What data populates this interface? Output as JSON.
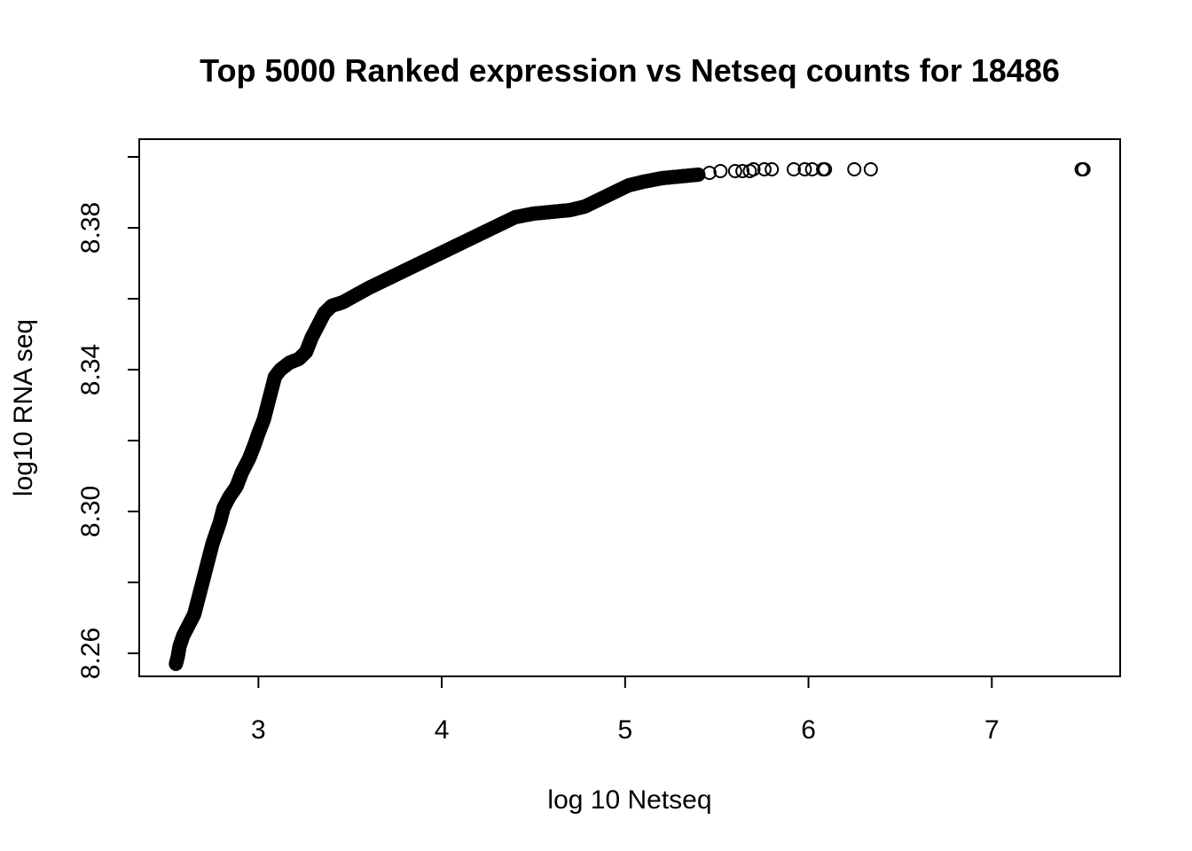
{
  "chart_data": {
    "type": "scatter",
    "title": "Top 5000 Ranked expression vs Netseq counts for 18486",
    "xlabel": "log 10 Netseq",
    "ylabel": "log10 RNA seq",
    "xlim": [
      2.35,
      7.7
    ],
    "ylim": [
      8.2535,
      8.405
    ],
    "xticks": [
      3,
      4,
      5,
      6,
      7
    ],
    "xtick_labels": [
      "3",
      "4",
      "5",
      "6",
      "7"
    ],
    "yticks": [
      8.26,
      8.28,
      8.3,
      8.32,
      8.34,
      8.36,
      8.38,
      8.4
    ],
    "ytick_labels": [
      "8.26",
      "",
      "8.30",
      "",
      "8.34",
      "",
      "8.38",
      ""
    ],
    "grid": false,
    "marker": "open-circle",
    "curve": [
      [
        2.55,
        8.257
      ],
      [
        2.56,
        8.259
      ],
      [
        2.57,
        8.262
      ],
      [
        2.59,
        8.265
      ],
      [
        2.62,
        8.268
      ],
      [
        2.65,
        8.271
      ],
      [
        2.67,
        8.275
      ],
      [
        2.69,
        8.279
      ],
      [
        2.71,
        8.283
      ],
      [
        2.73,
        8.287
      ],
      [
        2.75,
        8.291
      ],
      [
        2.77,
        8.294
      ],
      [
        2.79,
        8.297
      ],
      [
        2.81,
        8.301
      ],
      [
        2.84,
        8.304
      ],
      [
        2.88,
        8.307
      ],
      [
        2.91,
        8.311
      ],
      [
        2.95,
        8.315
      ],
      [
        2.98,
        8.319
      ],
      [
        3.0,
        8.322
      ],
      [
        3.03,
        8.326
      ],
      [
        3.05,
        8.33
      ],
      [
        3.07,
        8.334
      ],
      [
        3.09,
        8.338
      ],
      [
        3.12,
        8.34
      ],
      [
        3.17,
        8.342
      ],
      [
        3.22,
        8.343
      ],
      [
        3.26,
        8.345
      ],
      [
        3.29,
        8.349
      ],
      [
        3.32,
        8.352
      ],
      [
        3.36,
        8.356
      ],
      [
        3.4,
        8.358
      ],
      [
        3.46,
        8.359
      ],
      [
        3.53,
        8.361
      ],
      [
        3.6,
        8.363
      ],
      [
        3.68,
        8.365
      ],
      [
        3.76,
        8.367
      ],
      [
        3.84,
        8.369
      ],
      [
        3.92,
        8.371
      ],
      [
        4.0,
        8.373
      ],
      [
        4.08,
        8.375
      ],
      [
        4.16,
        8.377
      ],
      [
        4.24,
        8.379
      ],
      [
        4.32,
        8.381
      ],
      [
        4.4,
        8.383
      ],
      [
        4.5,
        8.384
      ],
      [
        4.6,
        8.3845
      ],
      [
        4.7,
        8.385
      ],
      [
        4.78,
        8.386
      ],
      [
        4.86,
        8.388
      ],
      [
        4.94,
        8.39
      ],
      [
        5.02,
        8.392
      ],
      [
        5.1,
        8.393
      ],
      [
        5.2,
        8.394
      ],
      [
        5.3,
        8.3945
      ],
      [
        5.4,
        8.395
      ]
    ],
    "outliers": [
      [
        5.46,
        8.3955
      ],
      [
        5.52,
        8.396
      ],
      [
        5.6,
        8.396
      ],
      [
        5.64,
        8.396
      ],
      [
        5.68,
        8.396
      ],
      [
        5.7,
        8.3965
      ],
      [
        5.76,
        8.3965
      ],
      [
        5.8,
        8.3965
      ],
      [
        5.92,
        8.3965
      ],
      [
        5.98,
        8.3965
      ],
      [
        6.02,
        8.3965
      ],
      [
        6.08,
        8.3965
      ],
      [
        6.09,
        8.3965
      ],
      [
        6.25,
        8.3965
      ],
      [
        6.34,
        8.3965
      ],
      [
        7.49,
        8.3965
      ],
      [
        7.5,
        8.3965
      ]
    ]
  }
}
